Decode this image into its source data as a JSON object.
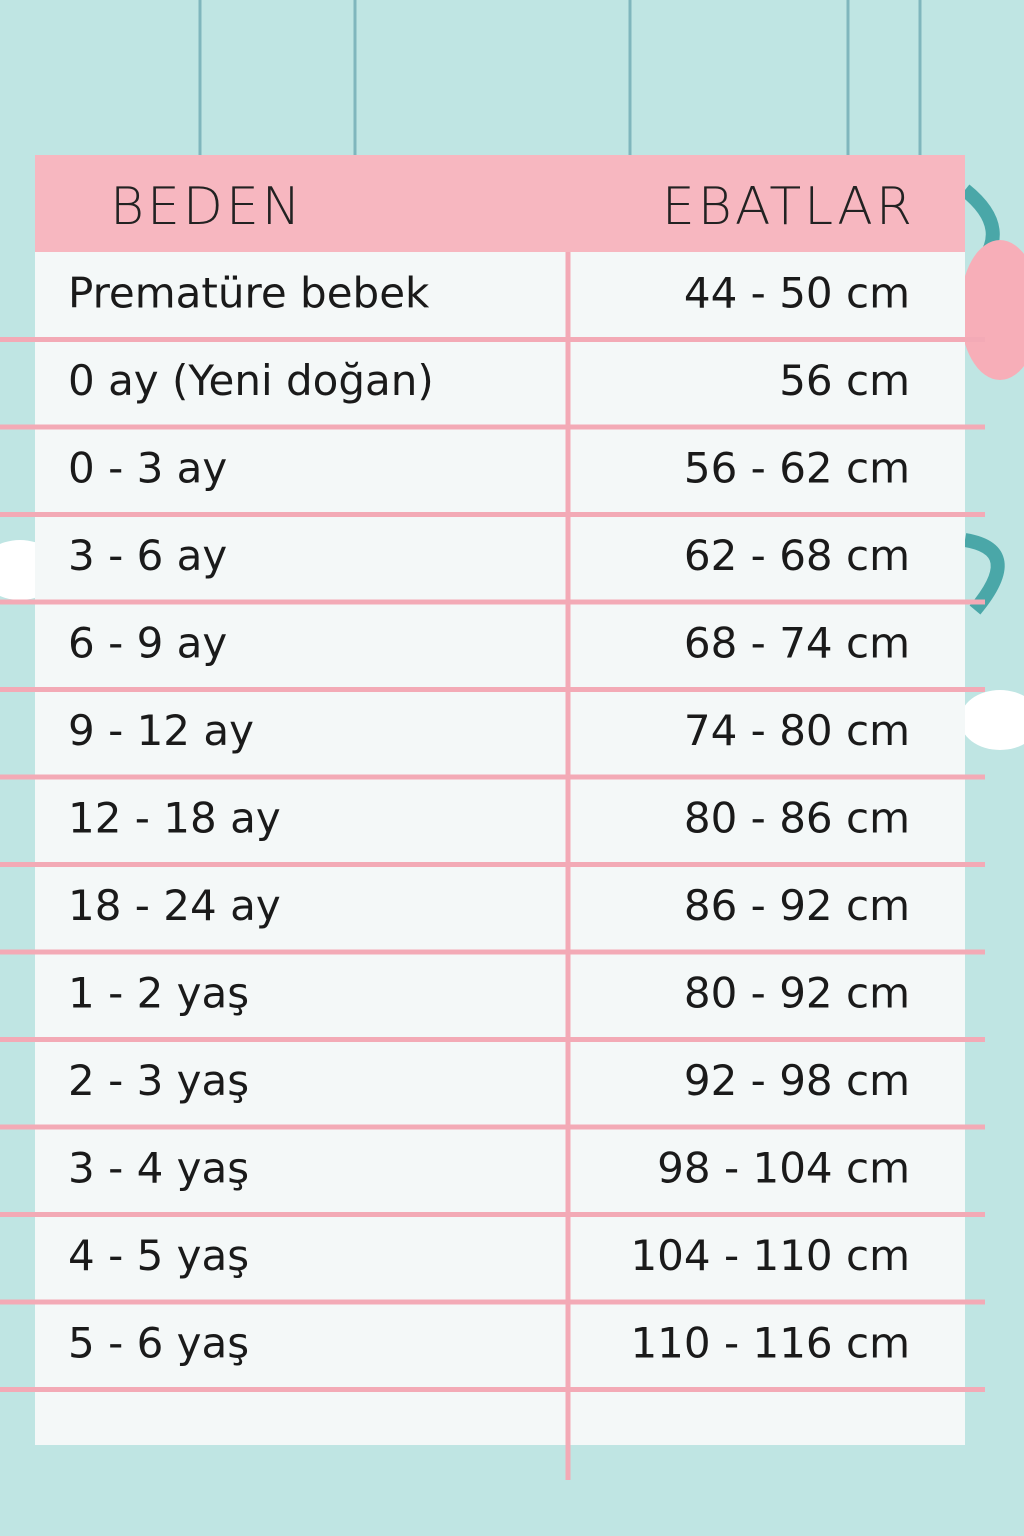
{
  "table": {
    "headers": [
      "BEDEN",
      "EBATLAR"
    ],
    "rows": [
      [
        "Prematüre bebek",
        "44 - 50 cm"
      ],
      [
        "0 ay (Yeni doğan)",
        "56 cm"
      ],
      [
        "0 - 3 ay",
        "56 - 62 cm"
      ],
      [
        "3 - 6 ay",
        "62 - 68 cm"
      ],
      [
        "6 - 9 ay",
        "68 - 74 cm"
      ],
      [
        "9 - 12 ay",
        "74 - 80 cm"
      ],
      [
        "12 - 18 ay",
        "80 - 86 cm"
      ],
      [
        "18 - 24 ay",
        "86 - 92 cm"
      ],
      [
        "1 - 2 yaş",
        "80 - 92 cm"
      ],
      [
        "2 - 3 yaş",
        "92 - 98 cm"
      ],
      [
        "3 - 4 yaş",
        "98 - 104 cm"
      ],
      [
        "4 - 5 yaş",
        "104 - 110 cm"
      ],
      [
        "5 - 6 yaş",
        "110 - 116 cm"
      ]
    ]
  }
}
